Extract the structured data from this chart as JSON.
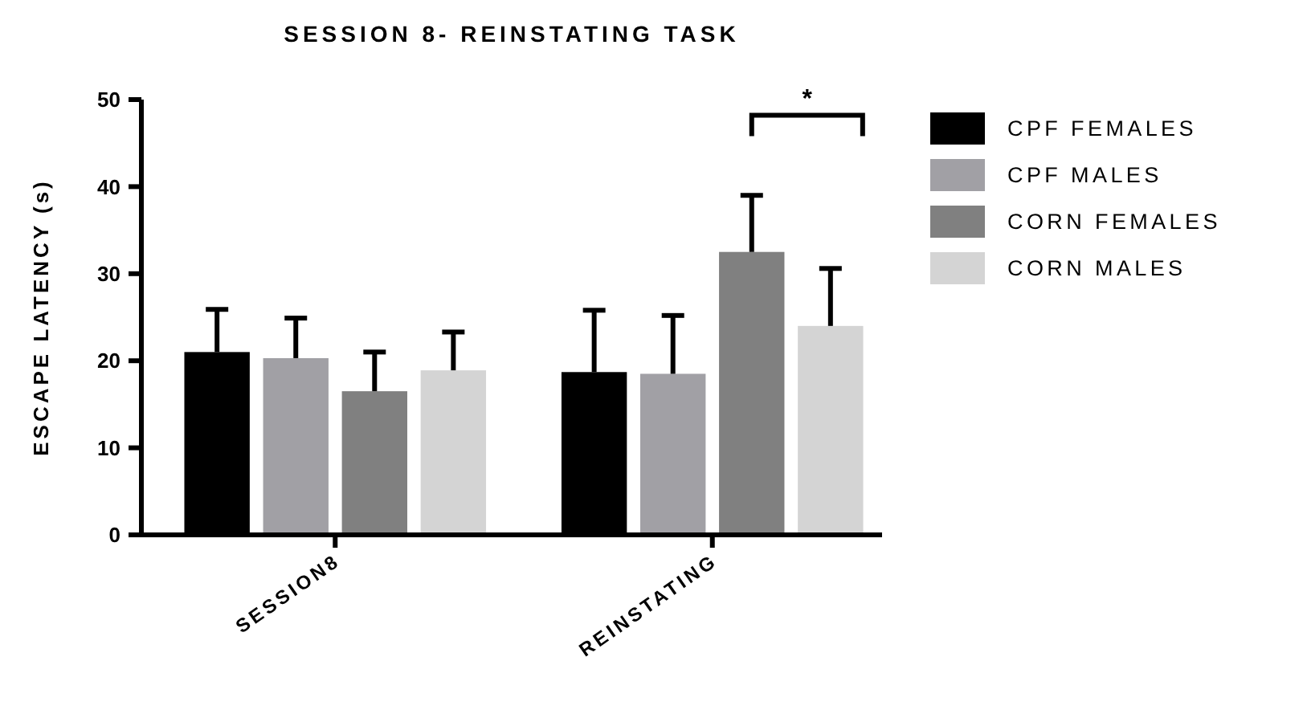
{
  "chart_data": {
    "type": "bar",
    "title": "SESSION 8- REINSTATING TASK",
    "ylabel": "ESCAPE LATENCY (s)",
    "categories": [
      "SESSION8",
      "REINSTATING"
    ],
    "series": [
      {
        "name": "CPF FEMALES",
        "color": "#000000",
        "values": [
          21.0,
          18.7
        ],
        "errors": [
          [
            21.0,
            25.9
          ],
          [
            18.7,
            25.8
          ]
        ]
      },
      {
        "name": "CPF MALES",
        "color": "#a1a0a5",
        "values": [
          20.3,
          18.5
        ],
        "errors": [
          [
            20.3,
            24.9
          ],
          [
            18.5,
            25.2
          ]
        ]
      },
      {
        "name": "CORN FEMALES",
        "color": "#808080",
        "values": [
          16.5,
          32.5
        ],
        "errors": [
          [
            16.5,
            21.0
          ],
          [
            32.5,
            39.0
          ]
        ]
      },
      {
        "name": "CORN MALES",
        "color": "#d4d4d4",
        "values": [
          18.9,
          24.0
        ],
        "errors": [
          [
            18.9,
            23.3
          ],
          [
            24.0,
            30.6
          ]
        ]
      }
    ],
    "ylim": [
      0,
      50
    ],
    "yticks": [
      0,
      10,
      20,
      30,
      40,
      50
    ],
    "grid": false,
    "legend": "right",
    "annotations": [
      "*"
    ]
  }
}
